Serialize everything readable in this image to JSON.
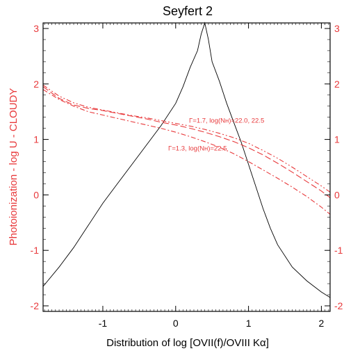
{
  "chart_data": {
    "type": "line",
    "title": "Seyfert 2",
    "xlabel": "Distribution of log [OVII(f)/OVIII Kα]",
    "ylabel": "Photoionization - log U - CLOUDY",
    "xlim": [
      -1.82,
      2.12
    ],
    "ylim": [
      -2.1,
      3.1
    ],
    "x_ticks": [
      -1,
      0,
      1,
      2
    ],
    "y_ticks": [
      -2,
      -1,
      0,
      1,
      2,
      3
    ],
    "x_tick_labels": [
      "-1",
      "0",
      "1",
      "2"
    ],
    "y_tick_labels": [
      "-2",
      "-1",
      "0",
      "1",
      "2",
      "3"
    ],
    "grid": false,
    "colors": {
      "axes": "#000000",
      "ylabel": "#e8393b",
      "models": "#e8393b",
      "distribution": "#000000"
    },
    "series": [
      {
        "style": "solid-thin",
        "color": "#000000",
        "x": [
          -1.82,
          -1.6,
          -1.4,
          -1.2,
          -1.0,
          -0.8,
          -0.6,
          -0.4,
          -0.2,
          0.0,
          0.1,
          0.2,
          0.3,
          0.35,
          0.4,
          0.45,
          0.5,
          0.6,
          0.7,
          0.8,
          0.9,
          1.0,
          1.1,
          1.2,
          1.3,
          1.4,
          1.6,
          1.8,
          2.0,
          2.12
        ],
        "y": [
          -1.65,
          -1.3,
          -0.95,
          -0.55,
          -0.15,
          0.2,
          0.55,
          0.9,
          1.25,
          1.65,
          1.95,
          2.3,
          2.6,
          2.9,
          3.1,
          2.8,
          2.4,
          2.05,
          1.65,
          1.3,
          0.95,
          0.55,
          0.15,
          -0.25,
          -0.6,
          -0.9,
          -1.3,
          -1.55,
          -1.75,
          -1.85
        ]
      },
      {
        "style": "dash-dot",
        "color": "#e8393b",
        "x": [
          -1.82,
          -1.6,
          -1.4,
          -1.2,
          -1.0,
          -0.8,
          -0.6,
          -0.4,
          -0.2,
          0.0,
          0.2,
          0.4,
          0.6,
          0.8,
          1.0,
          1.2,
          1.4,
          1.6,
          1.8,
          2.0,
          2.12
        ],
        "y": [
          1.9,
          1.72,
          1.6,
          1.5,
          1.44,
          1.38,
          1.32,
          1.26,
          1.2,
          1.13,
          1.05,
          0.96,
          0.86,
          0.74,
          0.6,
          0.45,
          0.3,
          0.14,
          -0.03,
          -0.22,
          -0.35
        ]
      },
      {
        "style": "dashed",
        "color": "#e8393b",
        "x": [
          -1.82,
          -1.6,
          -1.4,
          -1.2,
          -1.0,
          -0.8,
          -0.6,
          -0.4,
          -0.2,
          0.0,
          0.2,
          0.4,
          0.6,
          0.8,
          1.0,
          1.2,
          1.4,
          1.6,
          1.8,
          2.0,
          2.12
        ],
        "y": [
          1.95,
          1.74,
          1.62,
          1.56,
          1.52,
          1.47,
          1.42,
          1.37,
          1.31,
          1.26,
          1.2,
          1.13,
          1.05,
          0.96,
          0.85,
          0.72,
          0.57,
          0.41,
          0.24,
          0.07,
          -0.05
        ]
      },
      {
        "style": "dash-dot-dot",
        "color": "#e8393b",
        "x": [
          -1.82,
          -1.6,
          -1.4,
          -1.2,
          -1.0,
          -0.8,
          -0.6,
          -0.4,
          -0.2,
          0.0,
          0.2,
          0.4,
          0.6,
          0.8,
          1.0,
          1.2,
          1.4,
          1.6,
          1.8,
          2.0,
          2.12
        ],
        "y": [
          1.98,
          1.78,
          1.66,
          1.58,
          1.53,
          1.48,
          1.43,
          1.39,
          1.34,
          1.29,
          1.24,
          1.18,
          1.11,
          1.03,
          0.93,
          0.8,
          0.66,
          0.5,
          0.33,
          0.16,
          0.05
        ]
      }
    ],
    "annotations": [
      {
        "text": "Γ=1.7, log(Nʜ)=22.0, 22.5",
        "x": 0.7,
        "y": 1.3
      },
      {
        "text": "Γ=1.3, log(Nʜ)=22.5",
        "x": 0.3,
        "y": 0.8
      }
    ]
  }
}
